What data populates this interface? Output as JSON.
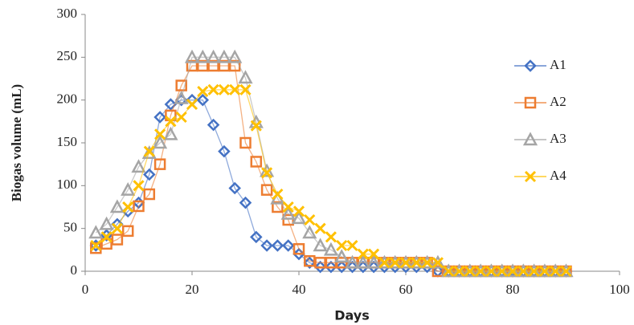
{
  "chart_data": {
    "type": "line",
    "xlabel": "Days",
    "ylabel": "Biogas volume (mL)",
    "x": [
      2,
      4,
      6,
      8,
      10,
      12,
      14,
      16,
      18,
      20,
      22,
      24,
      26,
      28,
      30,
      32,
      34,
      36,
      38,
      40,
      42,
      44,
      46,
      48,
      50,
      52,
      54,
      56,
      58,
      60,
      62,
      64,
      66,
      68,
      70,
      72,
      74,
      76,
      78,
      80,
      82,
      84,
      86,
      88,
      90
    ],
    "series": [
      {
        "name": "A1",
        "color": "#4472c4",
        "marker": "diamond",
        "values": [
          30,
          42,
          55,
          70,
          80,
          113,
          180,
          195,
          200,
          200,
          200,
          171,
          140,
          97,
          80,
          40,
          30,
          30,
          30,
          20,
          10,
          5,
          5,
          5,
          5,
          5,
          5,
          5,
          5,
          5,
          5,
          5,
          0,
          0,
          0,
          0,
          0,
          0,
          0,
          0,
          0,
          0,
          0,
          0,
          0
        ]
      },
      {
        "name": "A2",
        "color": "#ed7d31",
        "marker": "square",
        "values": [
          27,
          32,
          37,
          47,
          76,
          90,
          125,
          182,
          217,
          240,
          240,
          240,
          240,
          240,
          150,
          128,
          95,
          75,
          60,
          26,
          12,
          10,
          10,
          10,
          10,
          10,
          10,
          10,
          10,
          10,
          10,
          10,
          0,
          0,
          0,
          0,
          0,
          0,
          0,
          0,
          0,
          0,
          0,
          0,
          0
        ]
      },
      {
        "name": "A3",
        "color": "#a5a5a5",
        "marker": "triangle",
        "values": [
          45,
          55,
          75,
          95,
          122,
          138,
          150,
          160,
          202,
          250,
          250,
          250,
          250,
          250,
          226,
          174,
          117,
          85,
          67,
          62,
          45,
          30,
          25,
          17,
          10,
          10,
          10,
          10,
          10,
          10,
          10,
          10,
          10,
          0,
          0,
          0,
          0,
          0,
          0,
          0,
          0,
          0,
          0,
          0,
          0
        ]
      },
      {
        "name": "A4",
        "color": "#ffc000",
        "marker": "x",
        "values": [
          30,
          40,
          50,
          75,
          100,
          140,
          160,
          175,
          180,
          195,
          210,
          212,
          212,
          212,
          212,
          170,
          115,
          90,
          75,
          70,
          60,
          50,
          40,
          30,
          30,
          20,
          20,
          10,
          10,
          10,
          10,
          10,
          10,
          0,
          0,
          0,
          0,
          0,
          0,
          0,
          0,
          0,
          0,
          0,
          0
        ]
      }
    ],
    "xlim": [
      0,
      100
    ],
    "xticks": [
      0,
      20,
      40,
      60,
      80,
      100
    ],
    "ylim": [
      0,
      300
    ],
    "yticks": [
      0,
      50,
      100,
      150,
      200,
      250,
      300
    ],
    "grid": false,
    "legend": "right"
  }
}
